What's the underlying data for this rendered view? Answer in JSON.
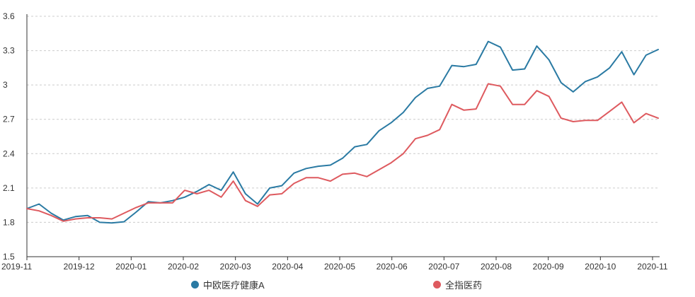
{
  "colors": {
    "series1": "#2A7AA3",
    "series2": "#DE5A5F",
    "grid": "#cccccc",
    "axis": "#333333"
  },
  "chart_data": {
    "type": "line",
    "title": "",
    "xlabel": "",
    "ylabel": "",
    "ylim": [
      1.5,
      3.6
    ],
    "yticks": [
      "1.5",
      "1.8",
      "2.1",
      "2.4",
      "2.7",
      "3",
      "3.3",
      "3.6"
    ],
    "xticks": [
      "2019-11",
      "2019-12",
      "2020-01",
      "2020-02",
      "2020-03",
      "2020-04",
      "2020-05",
      "2020-06",
      "2020-07",
      "2020-08",
      "2020-09",
      "2020-10",
      "2020-11"
    ],
    "grid": true,
    "grid_style": "dashed horizontal",
    "legend_position": "bottom-center",
    "series": [
      {
        "name": "中欧医疗健康A",
        "color": "#2A7AA3",
        "values": [
          1.92,
          1.96,
          1.88,
          1.82,
          1.85,
          1.86,
          1.8,
          1.795,
          1.805,
          1.89,
          1.98,
          1.97,
          1.99,
          2.02,
          2.07,
          2.13,
          2.08,
          2.24,
          2.05,
          1.96,
          2.1,
          2.12,
          2.23,
          2.27,
          2.29,
          2.3,
          2.36,
          2.46,
          2.48,
          2.6,
          2.67,
          2.76,
          2.89,
          2.97,
          2.99,
          3.17,
          3.16,
          3.18,
          3.38,
          3.33,
          3.13,
          3.14,
          3.34,
          3.22,
          3.02,
          2.94,
          3.03,
          3.07,
          3.15,
          3.29,
          3.09,
          3.26,
          3.31
        ]
      },
      {
        "name": "全指医药",
        "color": "#DE5A5F",
        "values": [
          1.92,
          1.9,
          1.86,
          1.81,
          1.83,
          1.84,
          1.84,
          1.83,
          1.88,
          1.93,
          1.97,
          1.97,
          1.97,
          2.08,
          2.05,
          2.08,
          2.02,
          2.16,
          1.99,
          1.94,
          2.04,
          2.05,
          2.14,
          2.19,
          2.19,
          2.16,
          2.22,
          2.23,
          2.2,
          2.26,
          2.32,
          2.4,
          2.53,
          2.56,
          2.61,
          2.83,
          2.78,
          2.79,
          3.01,
          2.99,
          2.83,
          2.83,
          2.95,
          2.9,
          2.71,
          2.68,
          2.69,
          2.69,
          2.77,
          2.85,
          2.67,
          2.75,
          2.71
        ]
      }
    ]
  }
}
